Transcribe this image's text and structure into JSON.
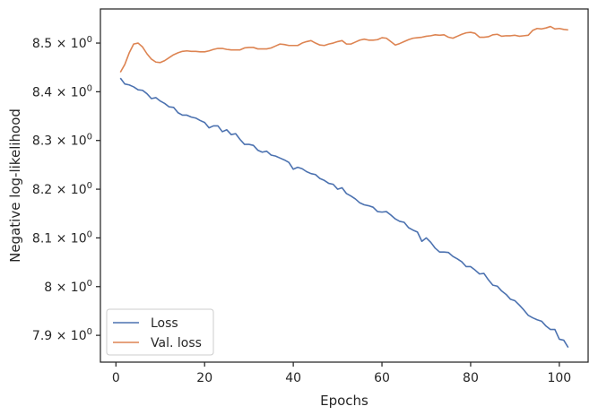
{
  "chart_data": {
    "type": "line",
    "xlabel": "Epochs",
    "ylabel": "Negative log-likelihood",
    "xlim": [
      -3.5,
      106.5
    ],
    "ylim": [
      7.845,
      8.57
    ],
    "x_ticks": [
      0,
      20,
      40,
      60,
      80,
      100
    ],
    "x_tick_labels": [
      "0",
      "20",
      "40",
      "60",
      "80",
      "100"
    ],
    "y_ticks": [
      7.9,
      8.0,
      8.1,
      8.2,
      8.3,
      8.4,
      8.5
    ],
    "y_tick_mantissas": [
      "7.9",
      "8",
      "8.1",
      "8.2",
      "8.3",
      "8.4",
      "8.5"
    ],
    "y_tick_multiplier": "× 10",
    "y_tick_exponent": "0",
    "y_scale": "log",
    "grid": false,
    "legend_position": "lower-left",
    "series": [
      {
        "name": "Loss",
        "color": "#4c72b0",
        "x": [
          1,
          2,
          3,
          4,
          5,
          6,
          7,
          8,
          9,
          10,
          11,
          12,
          13,
          14,
          15,
          16,
          17,
          18,
          19,
          20,
          21,
          22,
          23,
          24,
          25,
          26,
          27,
          28,
          29,
          30,
          31,
          32,
          33,
          34,
          35,
          36,
          37,
          38,
          39,
          40,
          41,
          42,
          43,
          44,
          45,
          46,
          47,
          48,
          49,
          50,
          51,
          52,
          53,
          54,
          55,
          56,
          57,
          58,
          59,
          60,
          61,
          62,
          63,
          64,
          65,
          66,
          67,
          68,
          69,
          70,
          71,
          72,
          73,
          74,
          75,
          76,
          77,
          78,
          79,
          80,
          81,
          82,
          83,
          84,
          85,
          86,
          87,
          88,
          89,
          90,
          91,
          92,
          93,
          94,
          95,
          96,
          97,
          98,
          99,
          100,
          101,
          102
        ],
        "values": [
          8.428,
          8.416,
          8.414,
          8.41,
          8.404,
          8.403,
          8.396,
          8.386,
          8.388,
          8.381,
          8.376,
          8.369,
          8.368,
          8.357,
          8.352,
          8.352,
          8.348,
          8.346,
          8.341,
          8.337,
          8.326,
          8.33,
          8.33,
          8.318,
          8.322,
          8.312,
          8.314,
          8.302,
          8.292,
          8.292,
          8.29,
          8.28,
          8.276,
          8.278,
          8.27,
          8.268,
          8.264,
          8.26,
          8.255,
          8.241,
          8.245,
          8.242,
          8.236,
          8.232,
          8.23,
          8.222,
          8.218,
          8.212,
          8.21,
          8.2,
          8.203,
          8.191,
          8.186,
          8.18,
          8.172,
          8.168,
          8.166,
          8.163,
          8.154,
          8.153,
          8.154,
          8.147,
          8.139,
          8.134,
          8.132,
          8.121,
          8.116,
          8.112,
          8.093,
          8.1,
          8.091,
          8.079,
          8.071,
          8.071,
          8.07,
          8.062,
          8.057,
          8.051,
          8.041,
          8.041,
          8.034,
          8.026,
          8.027,
          8.014,
          8.003,
          8.001,
          7.991,
          7.984,
          7.974,
          7.971,
          7.962,
          7.952,
          7.941,
          7.936,
          7.932,
          7.929,
          7.919,
          7.912,
          7.912,
          7.892,
          7.89,
          7.875
        ]
      },
      {
        "name": "Val. loss",
        "color": "#dd8452",
        "x": [
          1,
          2,
          3,
          4,
          5,
          6,
          7,
          8,
          9,
          10,
          11,
          12,
          13,
          14,
          15,
          16,
          17,
          18,
          19,
          20,
          21,
          22,
          23,
          24,
          25,
          26,
          27,
          28,
          29,
          30,
          31,
          32,
          33,
          34,
          35,
          36,
          37,
          38,
          39,
          40,
          41,
          42,
          43,
          44,
          45,
          46,
          47,
          48,
          49,
          50,
          51,
          52,
          53,
          54,
          55,
          56,
          57,
          58,
          59,
          60,
          61,
          62,
          63,
          64,
          65,
          66,
          67,
          68,
          69,
          70,
          71,
          72,
          73,
          74,
          75,
          76,
          77,
          78,
          79,
          80,
          81,
          82,
          83,
          84,
          85,
          86,
          87,
          88,
          89,
          90,
          91,
          92,
          93,
          94,
          95,
          96,
          97,
          98,
          99,
          100,
          101,
          102
        ],
        "values": [
          8.44,
          8.456,
          8.48,
          8.498,
          8.5,
          8.492,
          8.478,
          8.467,
          8.461,
          8.46,
          8.464,
          8.47,
          8.476,
          8.48,
          8.483,
          8.484,
          8.483,
          8.483,
          8.482,
          8.482,
          8.484,
          8.487,
          8.489,
          8.489,
          8.487,
          8.486,
          8.486,
          8.486,
          8.49,
          8.491,
          8.491,
          8.488,
          8.488,
          8.488,
          8.49,
          8.494,
          8.498,
          8.497,
          8.495,
          8.495,
          8.495,
          8.5,
          8.503,
          8.505,
          8.5,
          8.496,
          8.495,
          8.498,
          8.5,
          8.503,
          8.505,
          8.498,
          8.498,
          8.502,
          8.506,
          8.508,
          8.506,
          8.506,
          8.507,
          8.511,
          8.51,
          8.503,
          8.496,
          8.499,
          8.503,
          8.507,
          8.51,
          8.511,
          8.512,
          8.514,
          8.515,
          8.517,
          8.516,
          8.517,
          8.512,
          8.51,
          8.514,
          8.518,
          8.521,
          8.522,
          8.52,
          8.512,
          8.512,
          8.513,
          8.517,
          8.518,
          8.514,
          8.515,
          8.515,
          8.516,
          8.514,
          8.515,
          8.516,
          8.526,
          8.53,
          8.529,
          8.531,
          8.534,
          8.529,
          8.53,
          8.528,
          8.527
        ]
      }
    ]
  }
}
